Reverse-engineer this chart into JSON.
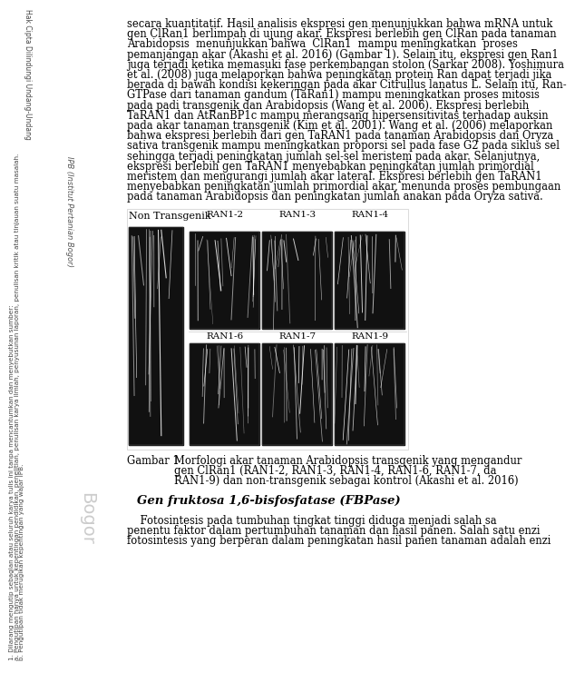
{
  "background_color": "#ffffff",
  "text_color": "#000000",
  "body_text_lines": [
    "secara kuantitatif. Hasil analisis ekspresi gen menunjukkan bahwa mRNA untuk",
    "gen ClRan1 berlimpah di ujung akar. Ekspresi berlebih gen ClRan pada tanaman",
    "Arabidopsis  menunjukkan bahwa  ClRan1  mampu meningkatkan  proses",
    "pemanjangan akar (Akashi et al. 2016) (Gambar 1). Selain itu, ekspresi gen Ran1",
    "juga terjadi ketika memasuki fase perkembangan stolon (Sarkar 2008). Yoshimura",
    "et al. (2008) juga melaporkan bahwa peningkatan protein Ran dapat terjadi jika",
    "berada di bawah kondisi kekeringan pada akar Citrullus lanatus L. Selain itu, Ran-",
    "GTPase dari tanaman gandum (TaRan1) mampu meningkatkan proses mitosis",
    "pada padi transgenik dan Arabidopsis (Wang et al. 2006). Ekspresi berlebih",
    "TaRAN1 dan AtRanBP1c mampu merangsang hipersensitivitas terhadap auksin",
    "pada akar tanaman transgenik (Kim et al. 2001). Wang et al. (2006) melaporkan",
    "bahwa ekspresi berlebih dari gen TaRAN1 pada tanaman Arabidopsis dan Oryza",
    "sativa transgenik mampu meningkatkan proporsi sel pada fase G2 pada siklus sel",
    "sehingga terjadi peningkatan jumlah sel-sel meristem pada akar. Selanjutnya,",
    "ekspresi berlebih gen TaRAN1 menyebabkan peningkatan jumlah primordial",
    "meristem dan mengurangi jumlah akar lateral. Ekspresi berlebih gen TaRAN1",
    "menyebabkan peningkatan jumlah primordial akar, menunda proses pembungaan",
    "pada tanaman Arabidopsis dan peningkatan jumlah anakan pada Oryza sativa."
  ],
  "label_non_transgenik": "Non Transgenik",
  "labels_top": [
    "RAN1-2",
    "RAN1-3",
    "RAN1-4"
  ],
  "labels_bottom": [
    "RAN1-6",
    "RAN1-7",
    "RAN1-9"
  ],
  "gambar_label": "Gambar 1",
  "caption_line1": "Morfologi akar tanaman Arabidopsis transgenik yang mengandur",
  "caption_line2": "gen ClRan1 (RAN1-2, RAN1-3, RAN1-4, RAN1-6, RAN1-7, da",
  "caption_line3": "RAN1-9) dan non-transgenik sebagai kontrol (Akashi et al. 2016)",
  "section_title": "Gen fruktosa 1,6-bisfosfatase (FBPase)",
  "footer_lines": [
    "    Fotosintesis pada tumbuhan tingkat tinggi diduga menjadi salah sa",
    "penentu faktor dalam pertumbuhan tanaman dan hasil panen. Salah satu enzi",
    "fotosintesis yang berperan dalam peningkatan hasil panen tanaman adalah enzi"
  ],
  "left_sidebar_texts": [
    "1. Dilarang mengutip sebagian atau seluruh karya tulis ini tanpa mencantumkan dan menyebutkan sumber:",
    "a. Pengutipan hanya untuk kepentingan pendidikan, penelitian, penulisan karya ilmiah, penyusunan laporan, penulisan kritik atau tinjauan suatu masalah.",
    "b. Pengutipan tidak merugikan kepentingan yang wajar IPB."
  ],
  "mid_sidebar_text": "Hak Cipta Dilindungi Undang-Undang",
  "right_sidebar_text1": "IPB (Institut Pertanian Bogor)",
  "right_sidebar_text2": "Bogor",
  "image_bg_color": "#111111",
  "panel_border_color": "#cccccc",
  "body_fontsize": 8.3,
  "caption_fontsize": 8.3,
  "section_fontsize": 9.5,
  "footer_fontsize": 8.3,
  "sidebar_fontsize": 5.2
}
